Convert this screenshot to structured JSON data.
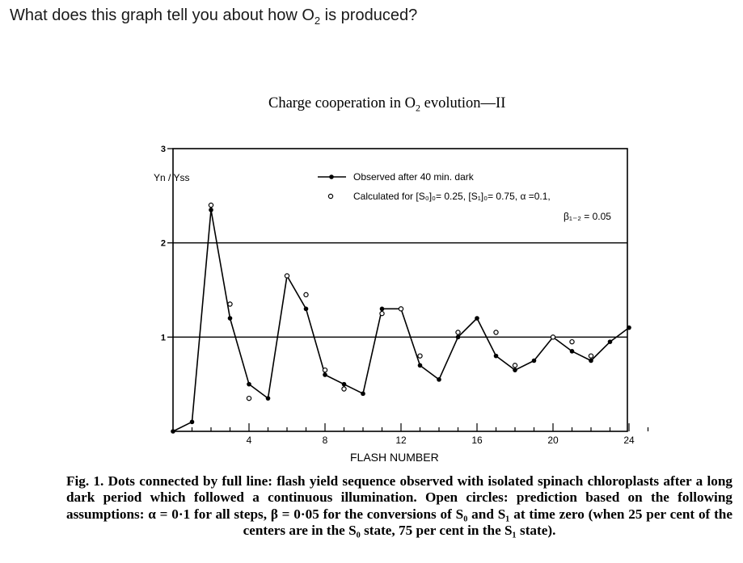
{
  "question": {
    "prefix": "What does this graph tell you about how O",
    "subscript": "2",
    "suffix": " is produced?"
  },
  "figure": {
    "title_prefix": "Charge cooperation in O",
    "title_subscript": "2",
    "title_suffix": " evolution—II"
  },
  "caption": "Fig. 1. Dots connected by full line: flash yield sequence observed with isolated spinach chloroplasts after a long dark period which followed a continuous illumination. Open circles: prediction based on the following assumptions: α = 0·1 for all steps, β = 0·05 for the conversions of S₀ and S₁ at time zero (when 25 per cent of the centers are in the S₀ state, 75 per cent in the S₁ state).",
  "chart_data": {
    "type": "line",
    "ylabel": "Yn / Yss",
    "xlabel": "FLASH NUMBER",
    "xlim": [
      0,
      25
    ],
    "ylim": [
      0,
      3
    ],
    "x_ticks": [
      "4",
      "8",
      "12",
      "16",
      "20",
      "24"
    ],
    "y_ticks": [
      "1",
      "2",
      "3"
    ],
    "legend": {
      "observed_label": "Observed after 40 min. dark",
      "calculated_label": "Calculated for [S₀]₀= 0.25, [S₁]₀= 0.75, α =0.1,",
      "calculated_label_2": "β₁₋₂ = 0.05"
    },
    "series": [
      {
        "name": "Observed after 40 min. dark",
        "style": "filled dots with line",
        "x": [
          0,
          1,
          2,
          3,
          4,
          5,
          6,
          7,
          8,
          9,
          10,
          11,
          12,
          13,
          14,
          15,
          16,
          17,
          18,
          19,
          20,
          21,
          22,
          23,
          24
        ],
        "y": [
          0.0,
          0.1,
          2.35,
          1.2,
          0.5,
          0.35,
          1.65,
          1.3,
          0.6,
          0.5,
          0.4,
          1.3,
          1.3,
          0.7,
          0.55,
          1.0,
          1.2,
          0.8,
          0.65,
          0.75,
          1.0,
          0.85,
          0.75,
          0.95,
          1.1
        ]
      },
      {
        "name": "Calculated",
        "style": "open circles",
        "x": [
          2,
          3,
          4,
          6,
          7,
          8,
          9,
          11,
          12,
          13,
          15,
          17,
          18,
          20,
          21,
          22
        ],
        "y": [
          2.4,
          1.35,
          0.35,
          1.65,
          1.45,
          0.65,
          0.45,
          1.25,
          1.3,
          0.8,
          1.05,
          1.05,
          0.7,
          1.0,
          0.95,
          0.8
        ]
      }
    ],
    "reference_lines_y": [
      1,
      2
    ]
  }
}
